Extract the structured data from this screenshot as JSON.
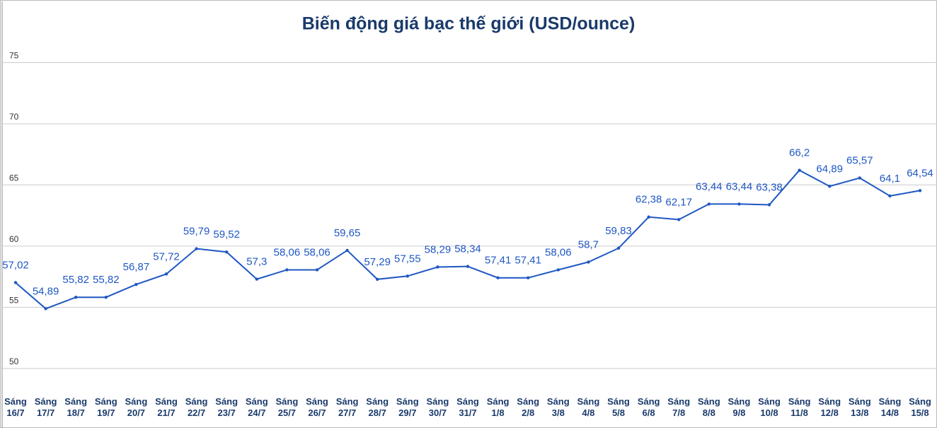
{
  "chart_data": {
    "type": "line",
    "title": "Biến động giá bạc thế giới (USD/ounce)",
    "categories": [
      "Sáng 16/7",
      "Sáng 17/7",
      "Sáng 18/7",
      "Sáng 19/7",
      "Sáng 20/7",
      "Sáng 21/7",
      "Sáng 22/7",
      "Sáng 23/7",
      "Sáng 24/7",
      "Sáng 25/7",
      "Sáng 26/7",
      "Sáng 27/7",
      "Sáng 28/7",
      "Sáng 29/7",
      "Sáng 30/7",
      "Sáng 31/7",
      "Sáng 1/8",
      "Sáng 2/8",
      "Sáng 3/8",
      "Sáng 4/8",
      "Sáng 5/8",
      "Sáng 6/8",
      "Sáng 7/8",
      "Sáng 8/8",
      "Sáng 9/8",
      "Sáng 10/8",
      "Sáng 11/8",
      "Sáng 12/8",
      "Sáng 13/8",
      "Sáng 14/8",
      "Sáng 15/8"
    ],
    "values": [
      57.02,
      54.89,
      55.82,
      55.82,
      56.87,
      57.72,
      59.79,
      59.52,
      57.3,
      58.06,
      58.06,
      59.65,
      57.29,
      57.55,
      58.29,
      58.34,
      57.41,
      57.41,
      58.06,
      58.7,
      59.83,
      62.38,
      62.17,
      63.44,
      63.44,
      63.38,
      66.2,
      64.89,
      65.57,
      64.1,
      64.54
    ],
    "value_labels": [
      "57,02",
      "54,89",
      "55,82",
      "55,82",
      "56,87",
      "57,72",
      "59,79",
      "59,52",
      "57,3",
      "58,06",
      "58,06",
      "59,65",
      "57,29",
      "57,55",
      "58,29",
      "58,34",
      "57,41",
      "57,41",
      "58,06",
      "58,7",
      "59,83",
      "62,38",
      "62,17",
      "63,44",
      "63,44",
      "63,38",
      "66,2",
      "64,89",
      "65,57",
      "64,1",
      "64,54"
    ],
    "color": "#1f57c3",
    "ylim": [
      48.2,
      80
    ],
    "yticks": [
      50,
      55,
      60,
      65,
      70,
      75
    ],
    "grid": true
  }
}
